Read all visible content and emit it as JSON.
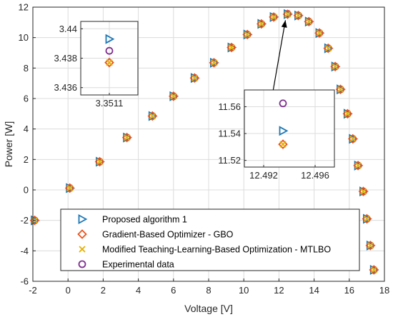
{
  "colors": {
    "proposed": "#1f77b4",
    "gbo": "#e8541e",
    "mtlbo": "#e6b000",
    "experimental": "#7e2f8e"
  },
  "chart_data": {
    "type": "scatter",
    "xlabel": "Voltage [V]",
    "ylabel": "Power [W]",
    "xlim": [
      -2,
      18
    ],
    "ylim": [
      -6,
      12
    ],
    "xticks": [
      -2,
      0,
      2,
      4,
      6,
      8,
      10,
      12,
      14,
      16,
      18
    ],
    "yticks": [
      -6,
      -4,
      -2,
      0,
      2,
      4,
      6,
      8,
      10,
      12
    ],
    "grid": true,
    "legend_position": "bottom-center",
    "x": [
      -1.9,
      0.1,
      1.8,
      3.35,
      4.8,
      6.0,
      7.2,
      8.3,
      9.3,
      10.2,
      11.0,
      11.7,
      12.49,
      13.1,
      13.7,
      14.3,
      14.8,
      15.2,
      15.5,
      15.9,
      16.2,
      16.5,
      16.8,
      17.0,
      17.2,
      17.4
    ],
    "series": [
      {
        "name": "Proposed algorithm 1",
        "marker": "triangle-right",
        "values": [
          -2.0,
          0.12,
          1.85,
          3.44,
          4.85,
          6.15,
          7.35,
          8.35,
          9.35,
          10.2,
          10.9,
          11.35,
          11.54,
          11.45,
          11.05,
          10.3,
          9.3,
          8.1,
          6.6,
          5.0,
          3.35,
          1.6,
          -0.1,
          -1.9,
          -3.65,
          -5.25
        ]
      },
      {
        "name": "Gradient-Based Optimizer - GBO",
        "marker": "diamond",
        "values": [
          -2.0,
          0.12,
          1.85,
          3.44,
          4.85,
          6.15,
          7.35,
          8.35,
          9.35,
          10.2,
          10.9,
          11.35,
          11.53,
          11.45,
          11.05,
          10.3,
          9.3,
          8.1,
          6.6,
          5.0,
          3.35,
          1.6,
          -0.1,
          -1.9,
          -3.65,
          -5.25
        ]
      },
      {
        "name": "Modified Teaching-Learning-Based Optimization - MTLBO",
        "marker": "x",
        "values": [
          -2.0,
          0.12,
          1.85,
          3.44,
          4.85,
          6.15,
          7.35,
          8.35,
          9.35,
          10.2,
          10.9,
          11.35,
          11.53,
          11.45,
          11.05,
          10.3,
          9.3,
          8.1,
          6.6,
          5.0,
          3.35,
          1.6,
          -0.1,
          -1.9,
          -3.65,
          -5.25
        ]
      },
      {
        "name": "Experimental data",
        "marker": "circle",
        "values": [
          -2.0,
          0.12,
          1.85,
          3.44,
          4.85,
          6.15,
          7.35,
          8.35,
          9.35,
          10.2,
          10.9,
          11.35,
          11.56,
          11.45,
          11.05,
          10.3,
          9.3,
          8.1,
          6.6,
          5.0,
          3.35,
          1.6,
          -0.1,
          -1.9,
          -3.65,
          -5.25
        ]
      }
    ],
    "insets": [
      {
        "xlim": [
          3.35105,
          3.35115
        ],
        "ylim": [
          3.4355,
          3.4405
        ],
        "xticks": [
          3.3511
        ],
        "xticklabels": [
          "3.3511"
        ],
        "yticks": [
          3.436,
          3.438,
          3.44
        ],
        "yticklabels": [
          "3.436",
          "3.438",
          "3.44"
        ],
        "points": {
          "proposed": [
            3.3511,
            3.4393
          ],
          "experimental": [
            3.3511,
            3.4385
          ],
          "gbo": [
            3.3511,
            3.4377
          ],
          "mtlbo": [
            3.3511,
            3.4377
          ]
        }
      },
      {
        "xlim": [
          12.4905,
          12.4975
        ],
        "ylim": [
          11.515,
          11.5725
        ],
        "xticks": [
          12.492,
          12.496
        ],
        "xticklabels": [
          "12.492",
          "12.496"
        ],
        "yticks": [
          11.52,
          11.54,
          11.56
        ],
        "yticklabels": [
          "11.52",
          "11.54",
          "11.56"
        ],
        "points": {
          "experimental": [
            12.4935,
            11.5625
          ],
          "proposed": [
            12.4935,
            11.542
          ],
          "gbo": [
            12.4935,
            11.532
          ],
          "mtlbo": [
            12.4935,
            11.532
          ]
        }
      }
    ]
  }
}
